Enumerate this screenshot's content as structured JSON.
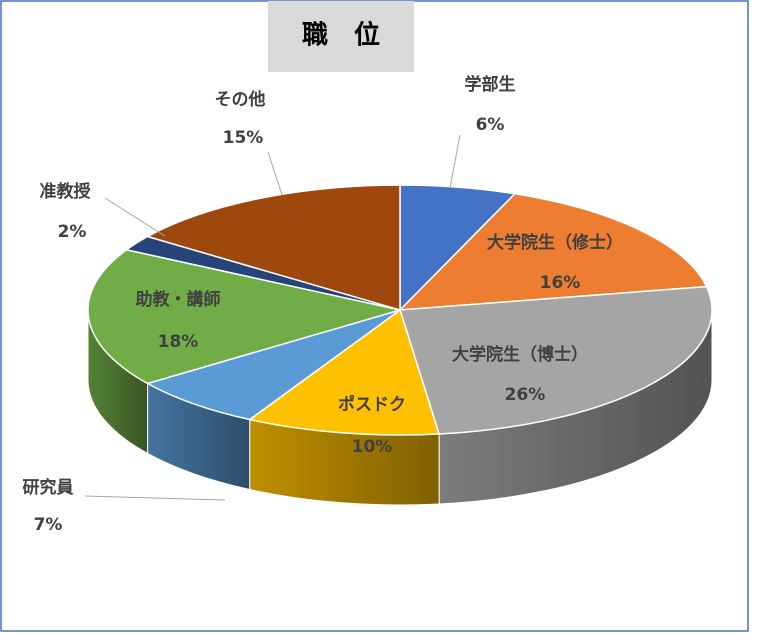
{
  "chart_data": {
    "type": "pie3d",
    "title": "職　位",
    "categories": [
      "学部生",
      "大学院生（修士）",
      "大学院生（博士）",
      "ポスドク",
      "研究員",
      "助教・講師",
      "准教授",
      "その他"
    ],
    "values": [
      6,
      16,
      26,
      10,
      7,
      18,
      2,
      15
    ],
    "value_labels": [
      "6%",
      "16%",
      "26%",
      "10%",
      "7%",
      "18%",
      "2%",
      "15%"
    ],
    "colors": [
      "#4472c4",
      "#ed7d31",
      "#a5a5a5",
      "#ffc000",
      "#5b9bd5",
      "#70ad47",
      "#264478",
      "#9e480e"
    ]
  }
}
